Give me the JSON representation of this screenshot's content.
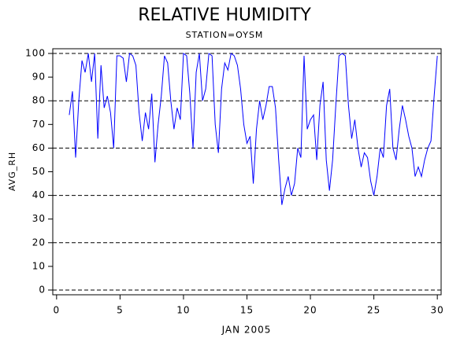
{
  "chart_data": {
    "type": "line",
    "title": "RELATIVE HUMIDITY",
    "subtitle": "STATION=OYSM",
    "x_label": "JAN 2005",
    "y_label": "AVG_RH",
    "xlim": [
      -0.3,
      30.3
    ],
    "xticks": [
      0,
      5,
      10,
      15,
      20,
      25,
      30
    ],
    "ylim": [
      -2,
      102
    ],
    "yticks": [
      0,
      10,
      20,
      30,
      40,
      50,
      60,
      70,
      80,
      90,
      100
    ],
    "ygrid": [
      0,
      20,
      40,
      60,
      80,
      100
    ],
    "series": [
      {
        "color": "#0000ff",
        "x": [
          1,
          1.25,
          1.5,
          1.75,
          2,
          2.25,
          2.5,
          2.75,
          3,
          3.25,
          3.5,
          3.75,
          4,
          4.25,
          4.5,
          4.75,
          5,
          5.25,
          5.5,
          5.75,
          6,
          6.25,
          6.5,
          6.75,
          7,
          7.25,
          7.5,
          7.75,
          8,
          8.25,
          8.5,
          8.75,
          9,
          9.25,
          9.5,
          9.75,
          10,
          10.25,
          10.5,
          10.75,
          11,
          11.25,
          11.5,
          11.75,
          12,
          12.25,
          12.5,
          12.75,
          13,
          13.25,
          13.5,
          13.75,
          14,
          14.25,
          14.5,
          14.75,
          15,
          15.25,
          15.5,
          15.75,
          16,
          16.25,
          16.5,
          16.75,
          17,
          17.25,
          17.5,
          17.75,
          18,
          18.25,
          18.5,
          18.75,
          19,
          19.25,
          19.5,
          19.75,
          20,
          20.25,
          20.5,
          20.75,
          21,
          21.25,
          21.5,
          21.75,
          22,
          22.25,
          22.5,
          22.75,
          23,
          23.25,
          23.5,
          23.75,
          24,
          24.25,
          24.5,
          24.75,
          25,
          25.25,
          25.5,
          25.75,
          26,
          26.25,
          26.5,
          26.75,
          27,
          27.25,
          27.5,
          27.75,
          28,
          28.25,
          28.5,
          28.75,
          29,
          29.25,
          29.5,
          29.75,
          30
        ],
        "values": [
          74,
          84,
          56,
          80,
          97,
          92,
          100,
          88,
          100,
          64,
          95,
          77,
          82,
          75,
          60,
          99,
          99,
          98,
          88,
          100,
          99,
          95,
          75,
          63,
          75,
          68,
          83,
          54,
          70,
          82,
          99,
          96,
          80,
          68,
          77,
          72,
          100,
          99,
          83,
          60,
          92,
          100,
          80,
          85,
          100,
          99,
          70,
          58,
          85,
          96,
          93,
          100,
          99,
          95,
          85,
          70,
          62,
          65,
          45,
          68,
          80,
          72,
          78,
          86,
          86,
          77,
          55,
          36,
          43,
          48,
          40,
          45,
          60,
          56,
          99,
          68,
          72,
          74,
          55,
          78,
          88,
          55,
          42,
          55,
          78,
          99,
          100,
          99,
          78,
          64,
          72,
          60,
          52,
          58,
          56,
          46,
          40,
          48,
          60,
          56,
          78,
          85,
          60,
          55,
          68,
          78,
          72,
          65,
          60,
          48,
          52,
          48,
          55,
          60,
          63,
          82,
          99
        ]
      }
    ]
  }
}
